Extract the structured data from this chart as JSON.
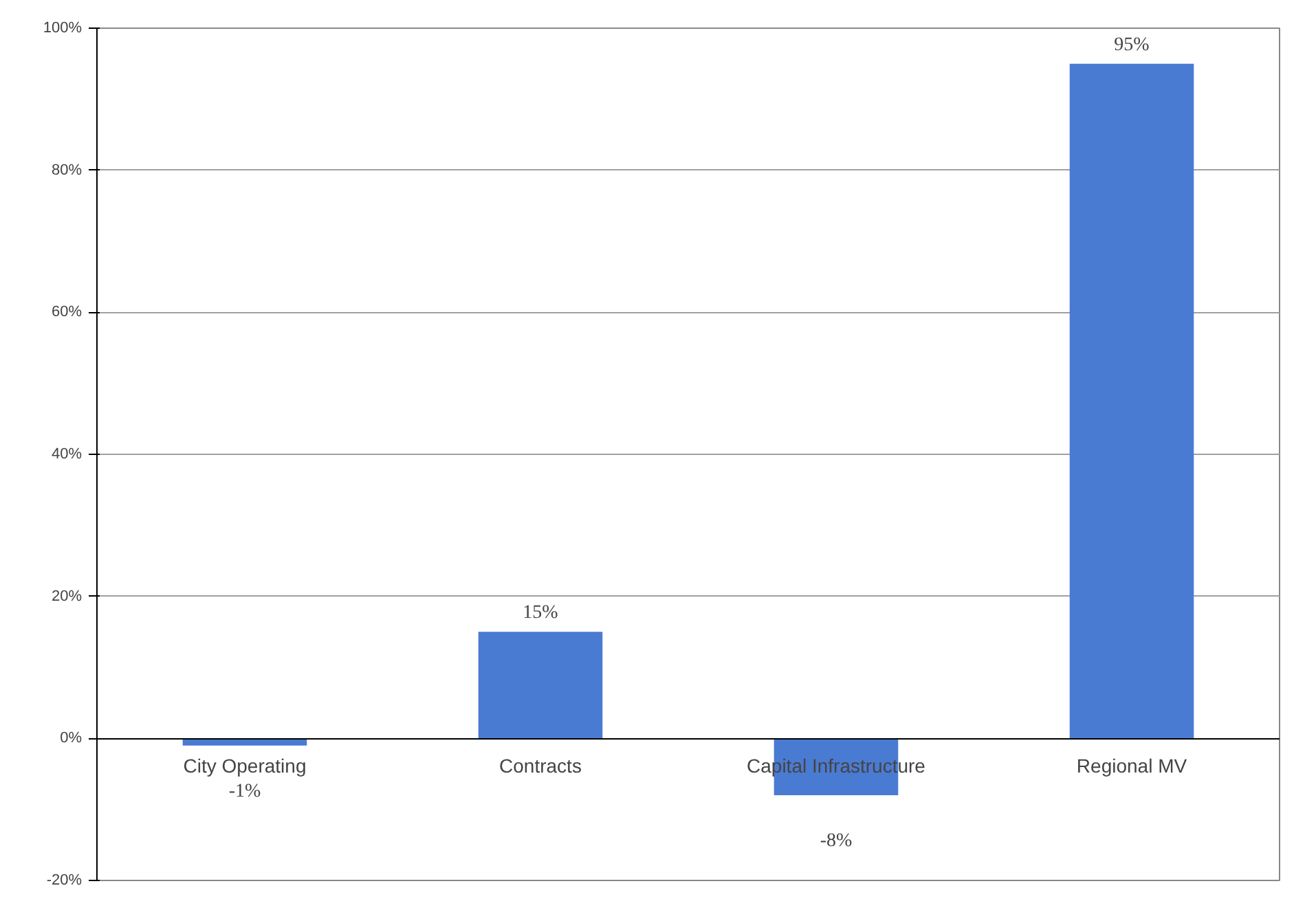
{
  "chart_data": {
    "type": "bar",
    "categories": [
      "City Operating",
      "Contracts",
      "Capital Infrastructure",
      "Regional MV"
    ],
    "values": [
      -1,
      15,
      -8,
      95
    ],
    "value_labels": [
      "-1%",
      "15%",
      "-8%",
      "95%"
    ],
    "color": "#4a7bd2",
    "ylim": [
      -20,
      100
    ],
    "yticks": [
      {
        "value": -20,
        "label": "-20%"
      },
      {
        "value": 0,
        "label": "0%"
      },
      {
        "value": 20,
        "label": "20%"
      },
      {
        "value": 40,
        "label": "40%"
      },
      {
        "value": 60,
        "label": "60%"
      },
      {
        "value": 80,
        "label": "80%"
      },
      {
        "value": 100,
        "label": "100%"
      }
    ],
    "grid": "y"
  }
}
